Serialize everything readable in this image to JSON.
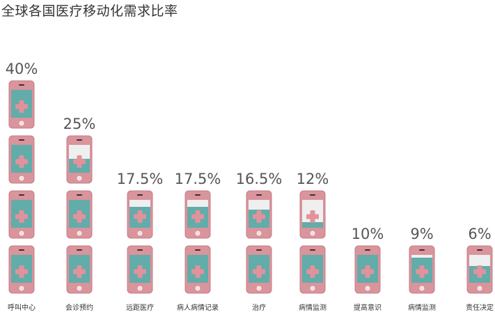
{
  "chart_data": {
    "type": "bar",
    "title": "全球各国医疗移动化需求比率",
    "xlabel": "",
    "ylabel": "",
    "unit": "%",
    "ylim": [
      0,
      40
    ],
    "units_per_phone": 10,
    "categories": [
      "呼叫中心",
      "会诊预约",
      "远距医疗",
      "病人病情记录",
      "治疗",
      "病情监测",
      "提高意识",
      "病情监测",
      "责任决定"
    ],
    "series": [
      {
        "values": [
          40,
          25,
          17.5,
          17.5,
          16.5,
          12,
          10,
          9,
          6
        ],
        "labels": [
          "40%",
          "25%",
          "17.5%",
          "17.5%",
          "16.5%",
          "12%",
          "10%",
          "9%",
          "6%"
        ]
      }
    ],
    "grid": false,
    "legend": "none"
  },
  "colors": {
    "phone_body": "#d9949c",
    "phone_edge": "#c47d86",
    "screen": "#62acaa",
    "screen_empty": "#efefef",
    "cross": "#e2929c",
    "speaker": "#3a2e30",
    "home_button": "#f3dde0",
    "value_label": "#555555",
    "category_label": "#333333"
  },
  "icon": "smartphone-medical-cross-icon"
}
